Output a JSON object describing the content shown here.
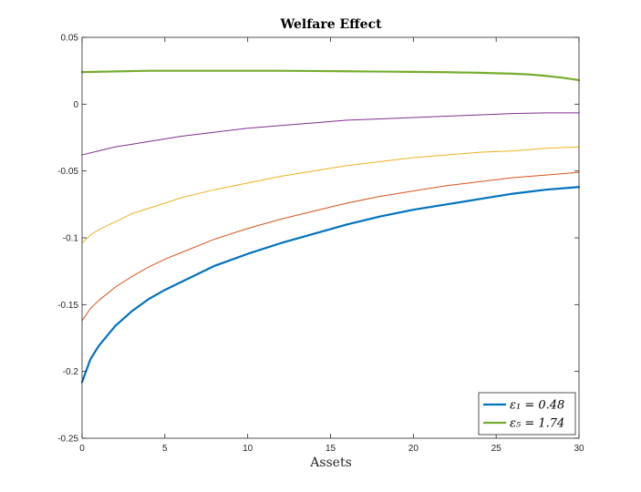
{
  "chart_data": {
    "type": "line",
    "title": "Welfare Effect",
    "xlabel": "Assets",
    "ylabel": "",
    "xlim": [
      0,
      30
    ],
    "ylim": [
      -0.25,
      0.05
    ],
    "xticks": [
      0,
      5,
      10,
      15,
      20,
      25,
      30
    ],
    "yticks": [
      -0.25,
      -0.2,
      -0.15,
      -0.1,
      -0.05,
      0,
      0.05
    ],
    "xtick_labels": [
      "0",
      "5",
      "10",
      "15",
      "20",
      "25",
      "30"
    ],
    "ytick_labels": [
      "-0.25",
      "-0.2",
      "-0.15",
      "-0.1",
      "-0.05",
      "0",
      "0.05"
    ],
    "grid": false,
    "legend_position": "bottom-right",
    "series": [
      {
        "label": "ε₁ = 0.48",
        "color": "#0072BD",
        "width": 2.2,
        "in_legend": true,
        "x": [
          0,
          0.5,
          1,
          2,
          3,
          4,
          5,
          6,
          8,
          10,
          12,
          14,
          16,
          18,
          20,
          22,
          24,
          26,
          28,
          30
        ],
        "y": [
          -0.208,
          -0.191,
          -0.181,
          -0.166,
          -0.155,
          -0.146,
          -0.139,
          -0.133,
          -0.121,
          -0.112,
          -0.104,
          -0.097,
          -0.09,
          -0.084,
          -0.079,
          -0.075,
          -0.071,
          -0.067,
          -0.064,
          -0.062
        ]
      },
      {
        "label": "",
        "color": "#D95319",
        "width": 1,
        "in_legend": false,
        "x": [
          0,
          0.5,
          1,
          2,
          3,
          4,
          5,
          6,
          8,
          10,
          12,
          14,
          16,
          18,
          20,
          22,
          24,
          26,
          28,
          30
        ],
        "y": [
          -0.162,
          -0.153,
          -0.147,
          -0.137,
          -0.129,
          -0.122,
          -0.116,
          -0.111,
          -0.101,
          -0.093,
          -0.086,
          -0.08,
          -0.074,
          -0.069,
          -0.065,
          -0.061,
          -0.058,
          -0.055,
          -0.053,
          -0.051
        ]
      },
      {
        "label": "",
        "color": "#EDB120",
        "width": 1,
        "in_legend": false,
        "x": [
          0,
          0.5,
          1,
          2,
          3,
          4,
          5,
          6,
          8,
          10,
          12,
          14,
          16,
          18,
          20,
          22,
          24,
          26,
          28,
          30
        ],
        "y": [
          -0.104,
          -0.098,
          -0.094,
          -0.088,
          -0.082,
          -0.078,
          -0.074,
          -0.07,
          -0.064,
          -0.059,
          -0.054,
          -0.05,
          -0.046,
          -0.043,
          -0.04,
          -0.038,
          -0.036,
          -0.035,
          -0.033,
          -0.032
        ]
      },
      {
        "label": "",
        "color": "#7E2F8E",
        "width": 1,
        "in_legend": false,
        "x": [
          0,
          1,
          2,
          3,
          4,
          5,
          6,
          8,
          10,
          12,
          14,
          16,
          18,
          20,
          22,
          24,
          26,
          28,
          30
        ],
        "y": [
          -0.038,
          -0.035,
          -0.032,
          -0.03,
          -0.028,
          -0.026,
          -0.024,
          -0.021,
          -0.018,
          -0.016,
          -0.014,
          -0.012,
          -0.011,
          -0.01,
          -0.009,
          -0.008,
          -0.007,
          -0.0065,
          -0.0065
        ]
      },
      {
        "label": "ε₅ = 1.74",
        "color": "#77AC30",
        "width": 2.2,
        "in_legend": true,
        "x": [
          0,
          2,
          4,
          6,
          8,
          10,
          12,
          14,
          16,
          18,
          20,
          22,
          24,
          26,
          27,
          28,
          29,
          30
        ],
        "y": [
          0.024,
          0.0245,
          0.025,
          0.025,
          0.025,
          0.025,
          0.025,
          0.0248,
          0.0246,
          0.0244,
          0.0242,
          0.0239,
          0.0235,
          0.0228,
          0.0222,
          0.0212,
          0.0198,
          0.018
        ]
      }
    ]
  }
}
